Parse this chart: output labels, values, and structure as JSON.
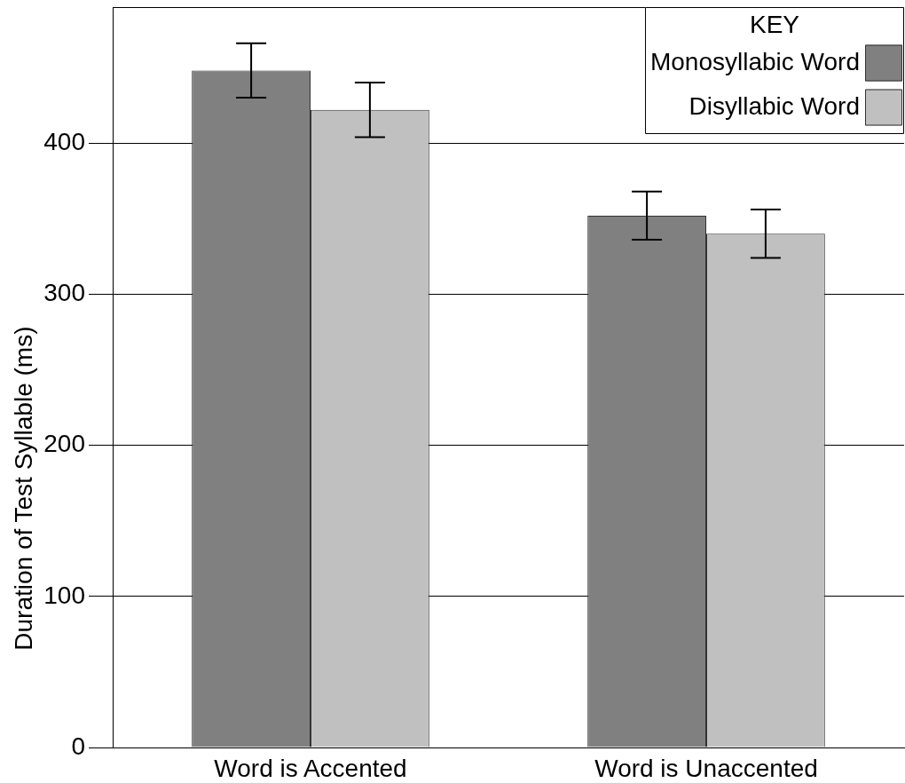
{
  "chart_data": {
    "type": "bar",
    "ylabel": "Duration of Test Syllable (ms)",
    "categories": [
      "Word is Accented",
      "Word is Unaccented"
    ],
    "series": [
      {
        "name": "Monosyllabic Word",
        "color": "#808080",
        "values": [
          448,
          352
        ],
        "errors": [
          18,
          16
        ]
      },
      {
        "name": "Disyllabic Word",
        "color": "#c0c0c0",
        "values": [
          422,
          340
        ],
        "errors": [
          18,
          16
        ]
      }
    ],
    "ylim": [
      0,
      490
    ],
    "yticks": [
      0,
      100,
      200,
      300,
      400
    ],
    "grid": "y",
    "legend": "top right",
    "legend_title": "KEY"
  }
}
